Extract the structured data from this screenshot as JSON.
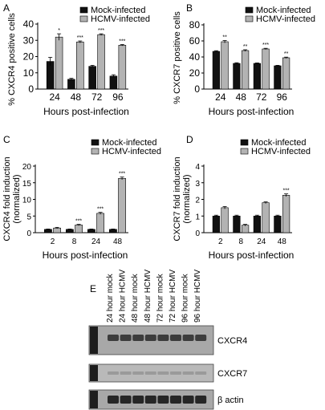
{
  "colors": {
    "mock": "#111111",
    "hcmv": "#b3b3b3",
    "axis": "#000000"
  },
  "chart_data": [
    {
      "panel": "A",
      "type": "bar",
      "xlabel": "Hours post-infection",
      "ylabel": "% CXCR4 positive cells",
      "categories": [
        "24",
        "48",
        "72",
        "96"
      ],
      "ylim": [
        0,
        40
      ],
      "yticks": [
        0,
        10,
        20,
        30,
        40
      ],
      "series": [
        {
          "name": "Mock-infected",
          "values": [
            17,
            6,
            14,
            8
          ],
          "errors": [
            2.5,
            0.6,
            0.6,
            0.8
          ]
        },
        {
          "name": "HCMV-infected",
          "values": [
            32,
            29,
            33.5,
            27
          ],
          "errors": [
            2.0,
            0.6,
            0.5,
            0.4
          ]
        }
      ],
      "annotations": [
        {
          "category": "24",
          "text": "*"
        },
        {
          "category": "48",
          "text": "***"
        },
        {
          "category": "72",
          "text": "***"
        },
        {
          "category": "96",
          "text": "***"
        }
      ],
      "legend": "top-right"
    },
    {
      "panel": "B",
      "type": "bar",
      "xlabel": "Hours post-infection",
      "ylabel": "% CXCR7 positive cells",
      "categories": [
        "24",
        "48",
        "72",
        "96"
      ],
      "ylim": [
        0,
        80
      ],
      "yticks": [
        0,
        20,
        40,
        60,
        80
      ],
      "series": [
        {
          "name": "Mock-infected",
          "values": [
            47,
            32,
            32,
            29
          ],
          "errors": [
            0.8,
            0.8,
            0.6,
            0.6
          ]
        },
        {
          "name": "HCMV-infected",
          "values": [
            59,
            48,
            50,
            39
          ],
          "errors": [
            1.5,
            1.0,
            0.8,
            0.8
          ]
        }
      ],
      "annotations": [
        {
          "category": "24",
          "text": "**"
        },
        {
          "category": "48",
          "text": "**"
        },
        {
          "category": "72",
          "text": "***"
        },
        {
          "category": "96",
          "text": "**"
        }
      ],
      "legend": "top-right"
    },
    {
      "panel": "C",
      "type": "bar",
      "xlabel": "Hours post-infection",
      "ylabel": "CXCR4 fold induction (normalized)",
      "ylabel_lines": [
        "CXCR4 fold induction",
        "(normalized)"
      ],
      "categories": [
        "2",
        "8",
        "24",
        "48"
      ],
      "ylim": [
        0,
        20
      ],
      "yticks": [
        0,
        5,
        10,
        15,
        20
      ],
      "series": [
        {
          "name": "Mock-infected",
          "values": [
            1,
            1,
            1,
            1
          ],
          "errors": [
            0.1,
            0.1,
            0.1,
            0.1
          ]
        },
        {
          "name": "HCMV-infected",
          "values": [
            1.4,
            2.3,
            5.8,
            16.3
          ],
          "errors": [
            0.2,
            0.2,
            0.3,
            0.4
          ]
        }
      ],
      "annotations": [
        {
          "category": "8",
          "text": "***"
        },
        {
          "category": "24",
          "text": "***"
        },
        {
          "category": "48",
          "text": "***"
        }
      ],
      "legend": "top-right"
    },
    {
      "panel": "D",
      "type": "bar",
      "xlabel": "Hours post-infection",
      "ylabel": "CXCR7 fold induction (normalized)",
      "ylabel_lines": [
        "CXCR7 fold induction",
        "(normalized)"
      ],
      "categories": [
        "2",
        "8",
        "24",
        "48"
      ],
      "ylim": [
        0,
        4
      ],
      "yticks": [
        0,
        1,
        2,
        3,
        4
      ],
      "series": [
        {
          "name": "Mock-infected",
          "values": [
            1,
            1,
            1,
            1
          ],
          "errors": [
            0.05,
            0.05,
            0.05,
            0.05
          ]
        },
        {
          "name": "HCMV-infected",
          "values": [
            1.5,
            0.45,
            1.8,
            2.25
          ],
          "errors": [
            0.07,
            0.05,
            0.05,
            0.08
          ]
        }
      ],
      "annotations": [
        {
          "category": "48",
          "text": "***"
        }
      ],
      "legend": "top-right"
    }
  ],
  "blot": {
    "panel": "E",
    "lanes": [
      "24 hour mock",
      "24 hour HCMV",
      "48 hour mock",
      "48 hour HCMV",
      "72 hour mock",
      "72 hour HCMV",
      "96 hour mock",
      "96 hour HCMV"
    ],
    "rows": [
      "CXCR4",
      "CXCR7",
      "β actin"
    ]
  }
}
